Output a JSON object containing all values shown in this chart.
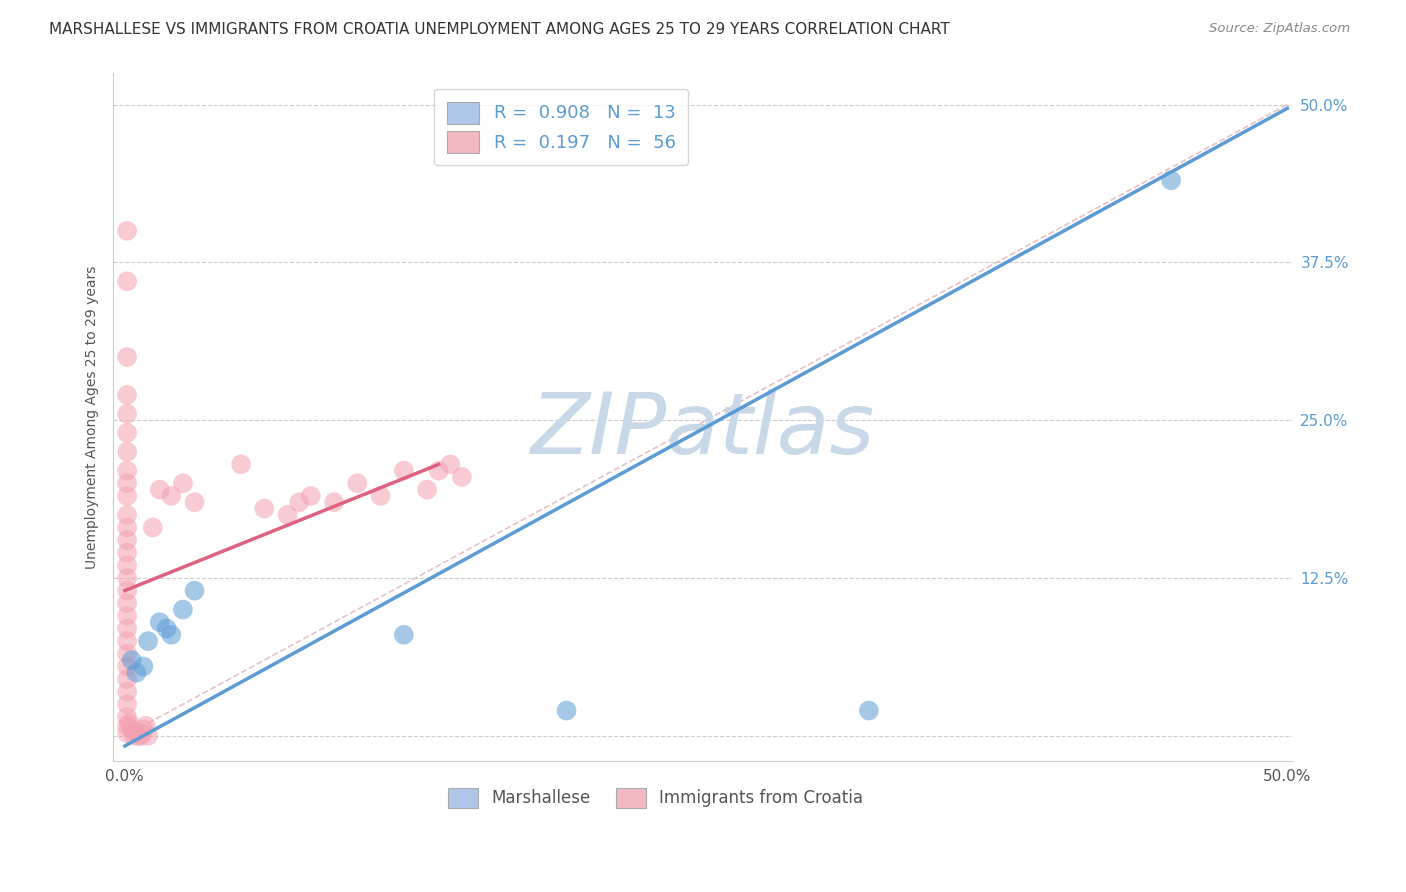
{
  "title": "MARSHALLESE VS IMMIGRANTS FROM CROATIA UNEMPLOYMENT AMONG AGES 25 TO 29 YEARS CORRELATION CHART",
  "source": "Source: ZipAtlas.com",
  "ylabel": "Unemployment Among Ages 25 to 29 years",
  "legend_entries": [
    {
      "label": "R =  0.908   N =  13",
      "color": "#aec6e8"
    },
    {
      "label": "R =  0.197   N =  56",
      "color": "#f4b8c1"
    }
  ],
  "legend_bottom": [
    "Marshallese",
    "Immigrants from Croatia"
  ],
  "blue_color": "#5b9bd5",
  "pink_color": "#f4a0b0",
  "blue_scatter": [
    [
      0.003,
      0.06
    ],
    [
      0.005,
      0.05
    ],
    [
      0.008,
      0.055
    ],
    [
      0.01,
      0.075
    ],
    [
      0.015,
      0.09
    ],
    [
      0.018,
      0.085
    ],
    [
      0.02,
      0.08
    ],
    [
      0.025,
      0.1
    ],
    [
      0.03,
      0.115
    ],
    [
      0.12,
      0.08
    ],
    [
      0.19,
      0.02
    ],
    [
      0.32,
      0.02
    ],
    [
      0.45,
      0.44
    ]
  ],
  "pink_scatter": [
    [
      0.001,
      0.4
    ],
    [
      0.001,
      0.36
    ],
    [
      0.001,
      0.3
    ],
    [
      0.001,
      0.27
    ],
    [
      0.001,
      0.255
    ],
    [
      0.001,
      0.24
    ],
    [
      0.001,
      0.225
    ],
    [
      0.001,
      0.21
    ],
    [
      0.001,
      0.2
    ],
    [
      0.001,
      0.19
    ],
    [
      0.001,
      0.175
    ],
    [
      0.001,
      0.165
    ],
    [
      0.001,
      0.155
    ],
    [
      0.001,
      0.145
    ],
    [
      0.001,
      0.135
    ],
    [
      0.001,
      0.125
    ],
    [
      0.001,
      0.115
    ],
    [
      0.001,
      0.105
    ],
    [
      0.001,
      0.095
    ],
    [
      0.001,
      0.085
    ],
    [
      0.001,
      0.075
    ],
    [
      0.001,
      0.065
    ],
    [
      0.001,
      0.055
    ],
    [
      0.001,
      0.045
    ],
    [
      0.001,
      0.035
    ],
    [
      0.001,
      0.025
    ],
    [
      0.001,
      0.015
    ],
    [
      0.001,
      0.008
    ],
    [
      0.001,
      0.002
    ],
    [
      0.002,
      0.01
    ],
    [
      0.003,
      0.005
    ],
    [
      0.004,
      0.0
    ],
    [
      0.005,
      0.003
    ],
    [
      0.006,
      0.0
    ],
    [
      0.007,
      0.0
    ],
    [
      0.008,
      0.005
    ],
    [
      0.009,
      0.008
    ],
    [
      0.01,
      0.0
    ],
    [
      0.012,
      0.165
    ],
    [
      0.015,
      0.195
    ],
    [
      0.02,
      0.19
    ],
    [
      0.025,
      0.2
    ],
    [
      0.03,
      0.185
    ],
    [
      0.05,
      0.215
    ],
    [
      0.06,
      0.18
    ],
    [
      0.07,
      0.175
    ],
    [
      0.075,
      0.185
    ],
    [
      0.08,
      0.19
    ],
    [
      0.09,
      0.185
    ],
    [
      0.1,
      0.2
    ],
    [
      0.11,
      0.19
    ],
    [
      0.12,
      0.21
    ],
    [
      0.13,
      0.195
    ],
    [
      0.135,
      0.21
    ],
    [
      0.14,
      0.215
    ],
    [
      0.145,
      0.205
    ]
  ],
  "blue_line": [
    [
      0.0,
      -0.008
    ],
    [
      0.5,
      0.497
    ]
  ],
  "pink_line": [
    [
      0.0,
      0.115
    ],
    [
      0.135,
      0.215
    ]
  ],
  "diag_line": [
    [
      0.0,
      0.0
    ],
    [
      0.5,
      0.5
    ]
  ],
  "xlim": [
    -0.005,
    0.502
  ],
  "ylim": [
    -0.02,
    0.525
  ],
  "x_ticks": [
    0.0,
    0.5
  ],
  "x_tick_labels": [
    "0.0%",
    "50.0%"
  ],
  "y_ticks": [
    0.0,
    0.125,
    0.25,
    0.375,
    0.5
  ],
  "y_tick_labels_right": [
    "",
    "12.5%",
    "25.0%",
    "37.5%",
    "50.0%"
  ],
  "watermark": "ZIPatlas",
  "watermark_color": "#c8d8e8",
  "background_color": "#ffffff",
  "grid_color": "#cccccc",
  "diag_color": "#e8c0c8",
  "title_fontsize": 11,
  "axis_label_fontsize": 10,
  "tick_fontsize": 11,
  "right_tick_color": "#5b9bd5"
}
